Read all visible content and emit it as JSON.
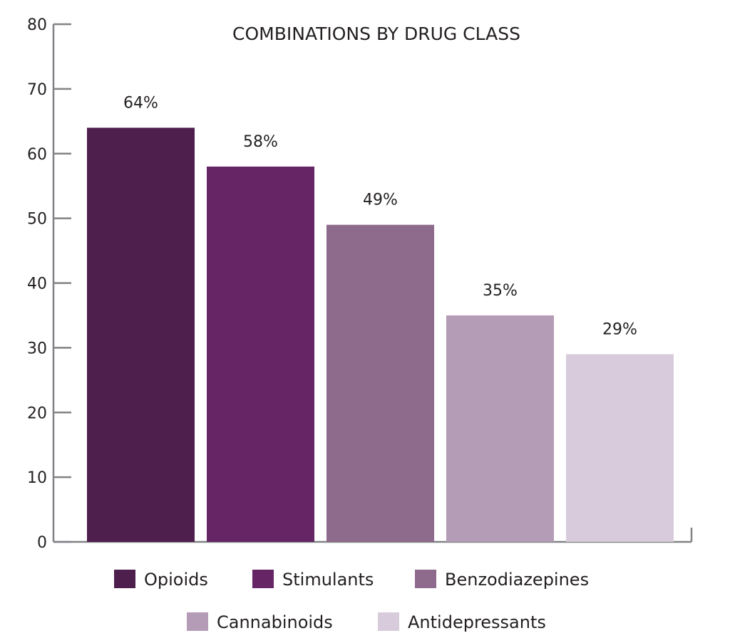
{
  "chart_data": {
    "type": "bar",
    "title": "COMBINATIONS BY DRUG CLASS",
    "categories": [
      "Opioids",
      "Stimulants",
      "Benzodiazepines",
      "Cannabinoids",
      "Antidepressants"
    ],
    "values": [
      64,
      58,
      49,
      35,
      29
    ],
    "data_labels": [
      "64%",
      "58%",
      "49%",
      "35%",
      "29%"
    ],
    "colors": [
      "#4e1e4c",
      "#662666",
      "#8e6a8c",
      "#b59cb6",
      "#d8ccdc"
    ],
    "ylim": [
      0,
      80
    ],
    "yticks": [
      0,
      10,
      20,
      30,
      40,
      50,
      60,
      70,
      80
    ],
    "xlabel": "",
    "ylabel": "",
    "grid": false,
    "legend_placement": "bottom"
  }
}
